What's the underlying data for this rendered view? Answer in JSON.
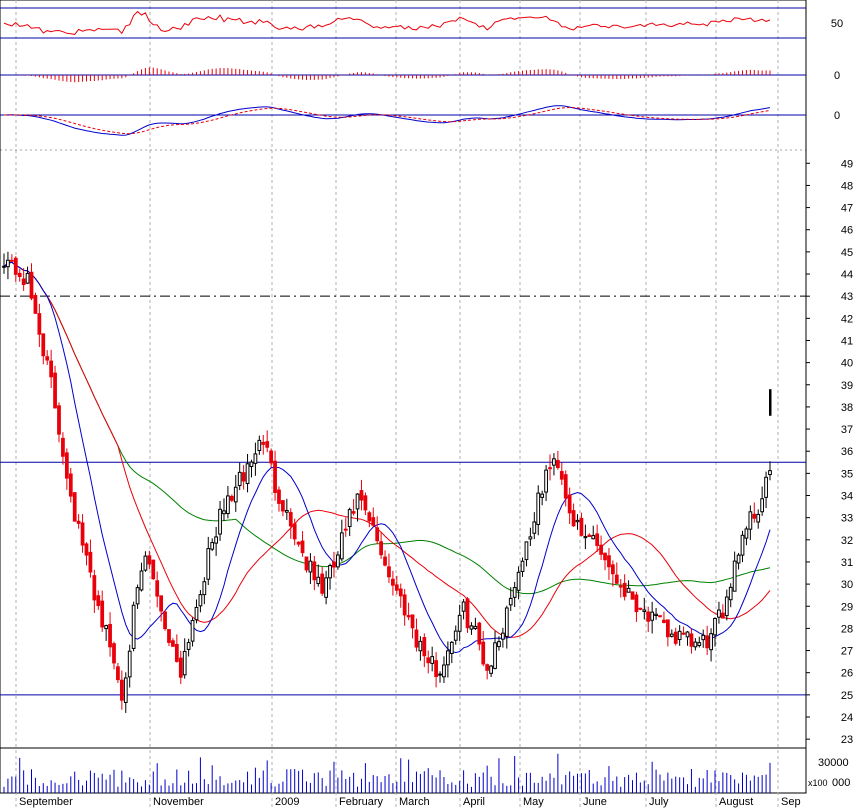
{
  "chart_data": {
    "type": "candlestick",
    "title": "",
    "x_months": [
      "September",
      "November",
      "2009",
      "February",
      "March",
      "April",
      "May",
      "June",
      "July",
      "August",
      "Sep"
    ],
    "price_axis": {
      "ylim": [
        22.6,
        49.6
      ],
      "ticks": [
        23,
        24,
        25,
        26,
        27,
        28,
        29,
        30,
        31,
        32,
        33,
        34,
        35,
        36,
        37,
        38,
        39,
        40,
        41,
        42,
        43,
        44,
        45,
        46,
        47,
        48,
        49
      ],
      "horizontal_lines": [
        25.0,
        35.5
      ],
      "dashed_line": 43.0
    },
    "sma_lines": {
      "blue": "short-term moving average",
      "red": "medium-term moving average",
      "green": "long-term moving average"
    },
    "closes_weekly": [
      44.8,
      44.2,
      43.6,
      41.5,
      39.0,
      36.0,
      33.2,
      31.0,
      29.0,
      27.2,
      25.0,
      28.6,
      31.2,
      29.6,
      27.5,
      26.2,
      28.4,
      30.5,
      32.5,
      33.8,
      34.6,
      35.6,
      36.6,
      34.5,
      33.2,
      31.8,
      30.6,
      29.8,
      30.8,
      32.5,
      33.8,
      32.8,
      31.5,
      30.0,
      29.0,
      27.6,
      26.5,
      26.0,
      27.6,
      28.8,
      27.8,
      26.2,
      27.5,
      29.5,
      31.2,
      33.0,
      35.0,
      35.6,
      33.4,
      32.0,
      32.2,
      31.2,
      30.2,
      29.6,
      29.0,
      28.4,
      28.0,
      27.6,
      27.4,
      27.2,
      27.6,
      28.8,
      31.0,
      32.8,
      33.4,
      35.2
    ],
    "rsi_panel": {
      "level_label": "50",
      "value": 50
    },
    "macd_histogram_panel": {
      "zero_label": "0",
      "value": 0
    },
    "macd_lines_panel": {
      "zero_label": "0",
      "value": 0
    },
    "volume_panel": {
      "tick_label": "30000",
      "multiplier_label": "x100",
      "multiplier_tick": "000"
    },
    "last_bar_marker": [
      37.6,
      38.8
    ]
  },
  "colors": {
    "up": "#000000",
    "down": "#e8000a",
    "blue": "#0000cc",
    "red": "#e8000a",
    "green": "#008000",
    "axis_line": "#0000aa",
    "grid": "#b0b0b0"
  }
}
